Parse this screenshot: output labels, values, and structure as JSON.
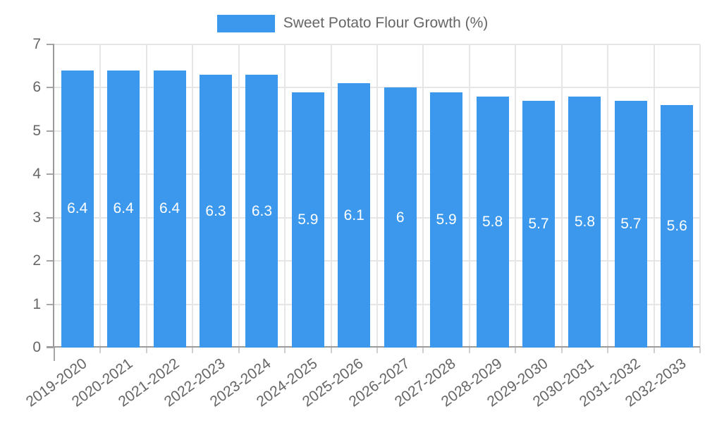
{
  "legend": {
    "label": "Sweet Potato Flour Growth (%)"
  },
  "chart_data": {
    "type": "bar",
    "title": "Sweet Potato Flour Growth (%)",
    "categories": [
      "2019-2020",
      "2020-2021",
      "2021-2022",
      "2022-2023",
      "2023-2024",
      "2024-2025",
      "2025-2026",
      "2026-2027",
      "2027-2028",
      "2028-2029",
      "2029-2030",
      "2030-2031",
      "2031-2032",
      "2032-2033"
    ],
    "values": [
      6.4,
      6.4,
      6.4,
      6.3,
      6.3,
      5.9,
      6.1,
      6,
      5.9,
      5.8,
      5.7,
      5.8,
      5.7,
      5.6
    ],
    "value_labels": [
      "6.4",
      "6.4",
      "6.4",
      "6.3",
      "6.3",
      "5.9",
      "6.1",
      "6",
      "5.9",
      "5.8",
      "5.7",
      "5.8",
      "5.7",
      "5.6"
    ],
    "series_name": "Sweet Potato Flour Growth (%)",
    "xlabel": "",
    "ylabel": "",
    "ylim": [
      0,
      7
    ],
    "yticks": [
      0,
      1,
      2,
      3,
      4,
      5,
      6,
      7
    ],
    "grid": true,
    "legend_position": "top",
    "bar_color": "#3b98ec",
    "value_label_color": "#ffffff",
    "axis_color": "#9b9b9b",
    "grid_color": "#e6e6e6",
    "tick_color": "#a6a6a6",
    "x_tick_color": "#cfcfcf",
    "tick_label_color": "#666666"
  }
}
